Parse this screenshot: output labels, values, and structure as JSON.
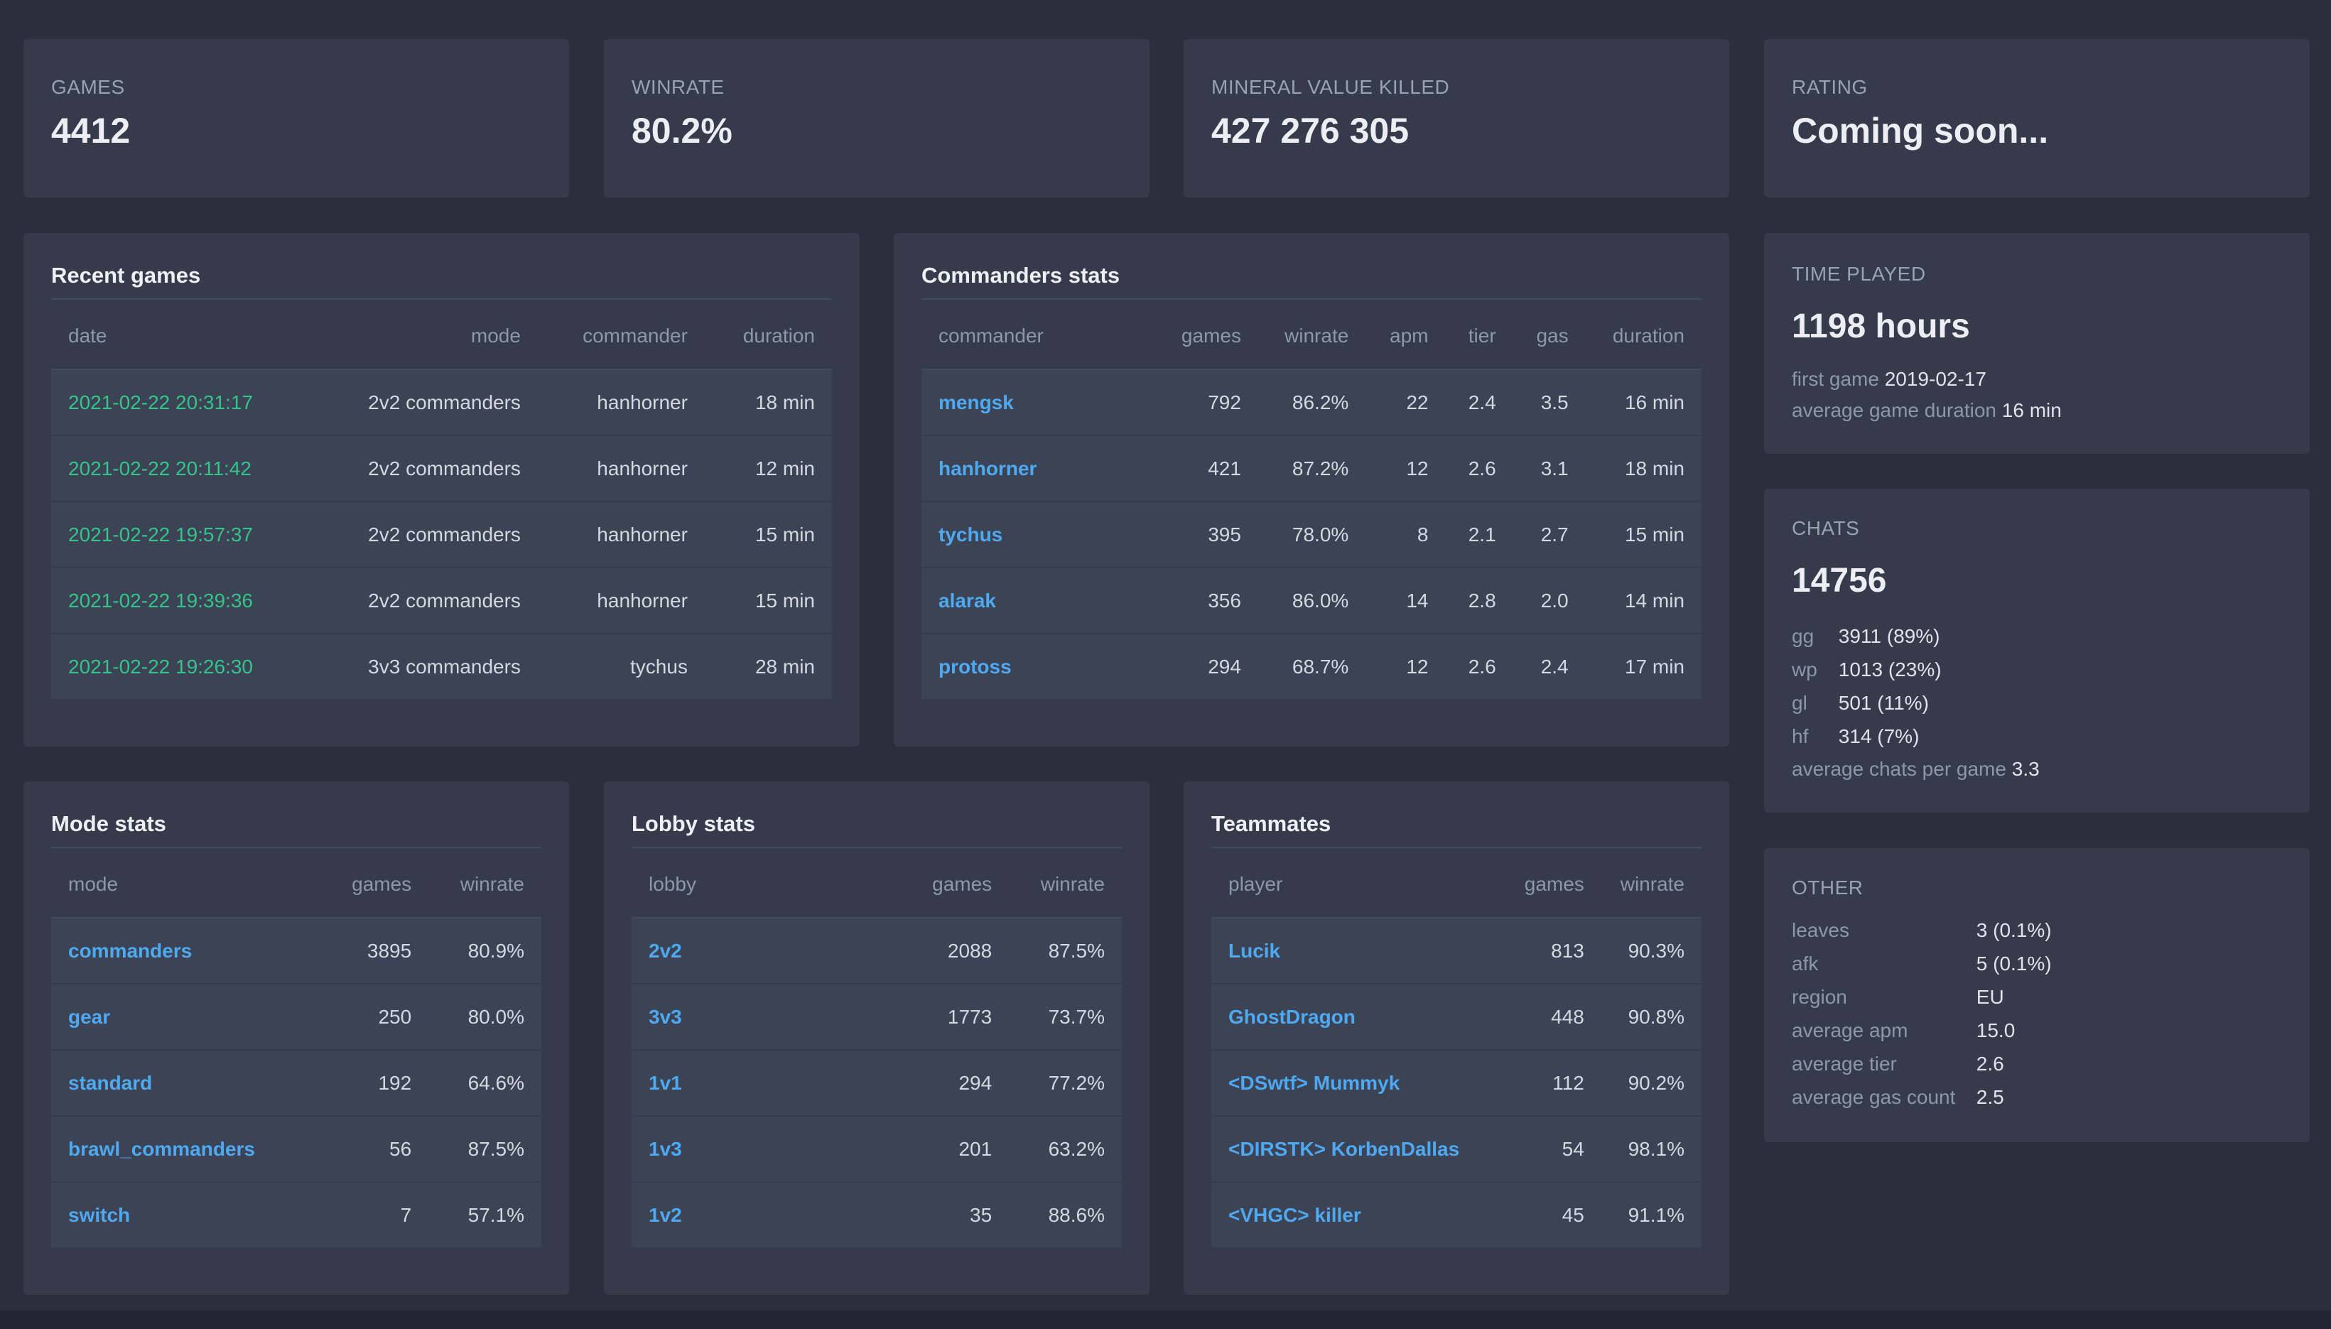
{
  "top_stats": {
    "games": {
      "label": "GAMES",
      "value": "4412"
    },
    "winrate": {
      "label": "WINRATE",
      "value": "80.2%"
    },
    "mineral": {
      "label": "MINERAL VALUE KILLED",
      "value": "427 276 305"
    },
    "rating": {
      "label": "RATING",
      "value": "Coming soon..."
    }
  },
  "recent_games": {
    "title": "Recent games",
    "headers": [
      "date",
      "mode",
      "commander",
      "duration"
    ],
    "rows": [
      [
        "2021-02-22 20:31:17",
        "2v2 commanders",
        "hanhorner",
        "18 min"
      ],
      [
        "2021-02-22 20:11:42",
        "2v2 commanders",
        "hanhorner",
        "12 min"
      ],
      [
        "2021-02-22 19:57:37",
        "2v2 commanders",
        "hanhorner",
        "15 min"
      ],
      [
        "2021-02-22 19:39:36",
        "2v2 commanders",
        "hanhorner",
        "15 min"
      ],
      [
        "2021-02-22 19:26:30",
        "3v3 commanders",
        "tychus",
        "28 min"
      ]
    ]
  },
  "commanders_stats": {
    "title": "Commanders stats",
    "headers": [
      "commander",
      "games",
      "winrate",
      "apm",
      "tier",
      "gas",
      "duration"
    ],
    "rows": [
      [
        "mengsk",
        "792",
        "86.2%",
        "22",
        "2.4",
        "3.5",
        "16 min"
      ],
      [
        "hanhorner",
        "421",
        "87.2%",
        "12",
        "2.6",
        "3.1",
        "18 min"
      ],
      [
        "tychus",
        "395",
        "78.0%",
        "8",
        "2.1",
        "2.7",
        "15 min"
      ],
      [
        "alarak",
        "356",
        "86.0%",
        "14",
        "2.8",
        "2.0",
        "14 min"
      ],
      [
        "protoss",
        "294",
        "68.7%",
        "12",
        "2.6",
        "2.4",
        "17 min"
      ]
    ]
  },
  "time_played": {
    "label": "TIME PLAYED",
    "value": "1198 hours",
    "first_game_label": "first game",
    "first_game": "2019-02-17",
    "avg_duration_label": "average game duration",
    "avg_duration": "16 min"
  },
  "chats": {
    "label": "CHATS",
    "value": "14756",
    "items": [
      {
        "k": "gg",
        "v": "3911 (89%)"
      },
      {
        "k": "wp",
        "v": "1013 (23%)"
      },
      {
        "k": "gl",
        "v": "501 (11%)"
      },
      {
        "k": "hf",
        "v": "314 (7%)"
      }
    ],
    "avg_label": "average chats per game",
    "avg_value": "3.3"
  },
  "mode_stats": {
    "title": "Mode stats",
    "headers": [
      "mode",
      "games",
      "winrate"
    ],
    "rows": [
      [
        "commanders",
        "3895",
        "80.9%"
      ],
      [
        "gear",
        "250",
        "80.0%"
      ],
      [
        "standard",
        "192",
        "64.6%"
      ],
      [
        "brawl_commanders",
        "56",
        "87.5%"
      ],
      [
        "switch",
        "7",
        "57.1%"
      ]
    ]
  },
  "lobby_stats": {
    "title": "Lobby stats",
    "headers": [
      "lobby",
      "games",
      "winrate"
    ],
    "rows": [
      [
        "2v2",
        "2088",
        "87.5%"
      ],
      [
        "3v3",
        "1773",
        "73.7%"
      ],
      [
        "1v1",
        "294",
        "77.2%"
      ],
      [
        "1v3",
        "201",
        "63.2%"
      ],
      [
        "1v2",
        "35",
        "88.6%"
      ]
    ]
  },
  "teammates": {
    "title": "Teammates",
    "headers": [
      "player",
      "games",
      "winrate"
    ],
    "rows": [
      [
        "Lucik",
        "813",
        "90.3%"
      ],
      [
        "GhostDragon",
        "448",
        "90.8%"
      ],
      [
        "<DSwtf> Mummyk",
        "112",
        "90.2%"
      ],
      [
        "<DIRSTK> KorbenDallas",
        "54",
        "98.1%"
      ],
      [
        "<VHGC> killer",
        "45",
        "91.1%"
      ]
    ]
  },
  "other": {
    "label": "OTHER",
    "items": [
      {
        "k": "leaves",
        "v": "3 (0.1%)"
      },
      {
        "k": "afk",
        "v": "5 (0.1%)"
      },
      {
        "k": "region",
        "v": "EU"
      },
      {
        "k": "average apm",
        "v": "15.0"
      },
      {
        "k": "average tier",
        "v": "2.6"
      },
      {
        "k": "average gas count",
        "v": "2.5"
      }
    ]
  }
}
